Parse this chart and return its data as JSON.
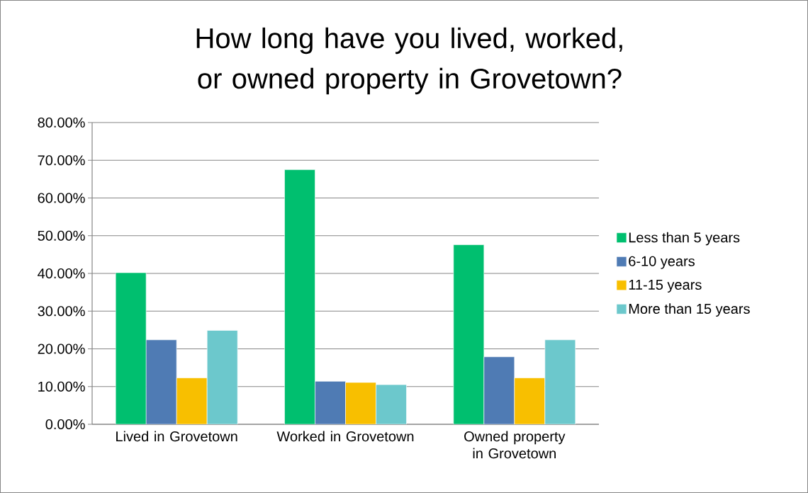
{
  "chart_data": {
    "type": "bar",
    "title": "How long have you lived, worked, or owned property in Grovetown?",
    "categories": [
      "Lived in Grovetown",
      "Worked in Grovetown",
      "Owned property in Grovetown"
    ],
    "series": [
      {
        "name": "Less than 5 years",
        "color": "#00bf6f",
        "values": [
          40.2,
          67.5,
          47.6
        ]
      },
      {
        "name": "6-10 years",
        "color": "#4f7bb4",
        "values": [
          22.4,
          11.4,
          17.9
        ]
      },
      {
        "name": "11-15 years",
        "color": "#f8bf00",
        "values": [
          12.3,
          11.1,
          12.3
        ]
      },
      {
        "name": "More than 15 years",
        "color": "#6cc8cc",
        "values": [
          24.9,
          10.5,
          22.4
        ]
      }
    ],
    "ylim": [
      0,
      80
    ],
    "yticks": [
      {
        "value": 0,
        "label": "0.00%"
      },
      {
        "value": 10,
        "label": "10.00%"
      },
      {
        "value": 20,
        "label": "20.00%"
      },
      {
        "value": 30,
        "label": "30.00%"
      },
      {
        "value": 40,
        "label": "40.00%"
      },
      {
        "value": 50,
        "label": "50.00%"
      },
      {
        "value": 60,
        "label": "60.00%"
      },
      {
        "value": 70,
        "label": "70.00%"
      },
      {
        "value": 80,
        "label": "80.00%"
      }
    ],
    "grid": "y",
    "legend": "right"
  }
}
